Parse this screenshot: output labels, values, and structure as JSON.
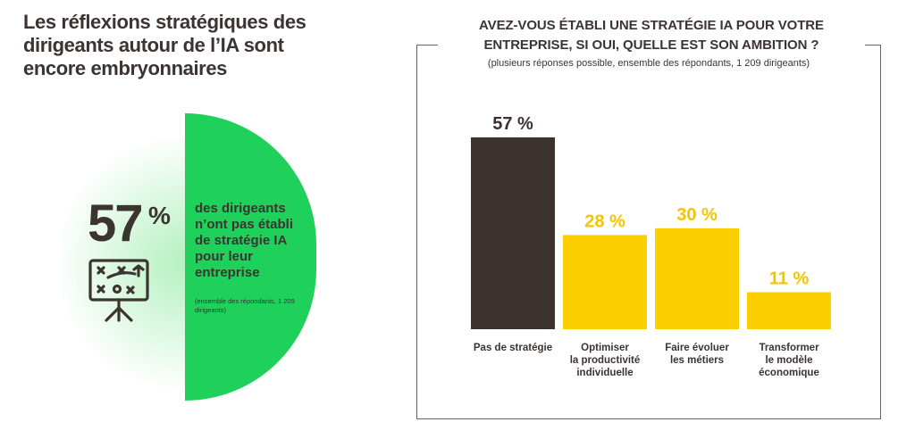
{
  "headline": "Les réflexions stratégiques des dirigeants autour de l’IA sont encore embryonnaires",
  "stat": {
    "value": "57",
    "symbol": "%",
    "text": "des dirigeants n’ont pas établi de stratégie IA pour leur entreprise",
    "note": "(ensemble des répondants, 1 209 dirigeants)",
    "icon": "strategy-board-icon",
    "color": "#1fd05a"
  },
  "chart_data": {
    "type": "bar",
    "title": "AVEZ-VOUS ÉTABLI UNE STRATÉGIE IA POUR VOTRE ENTREPRISE, SI OUI, QUELLE EST SON AMBITION ?",
    "subtitle": "(plusieurs réponses possible, ensemble des répondants, 1 209 dirigeants)",
    "categories": [
      "Pas de stratégie",
      "Optimiser la productivité individuelle",
      "Faire évoluer les métiers",
      "Transformer le modèle économique"
    ],
    "category_lines": [
      [
        "Pas de stratégie"
      ],
      [
        "Optimiser",
        "la productivité",
        "individuelle"
      ],
      [
        "Faire évoluer",
        "les métiers"
      ],
      [
        "Transformer",
        "le modèle",
        "économique"
      ]
    ],
    "values": [
      57,
      28,
      30,
      11
    ],
    "value_labels": [
      "57 %",
      "28 %",
      "30 %",
      "11 %"
    ],
    "colors": [
      "#3b3230",
      "#fccf00",
      "#fccf00",
      "#fccf00"
    ],
    "label_colors": [
      "#3b3230",
      "#f5c400",
      "#f5c400",
      "#f5c400"
    ],
    "unit": "%"
  }
}
